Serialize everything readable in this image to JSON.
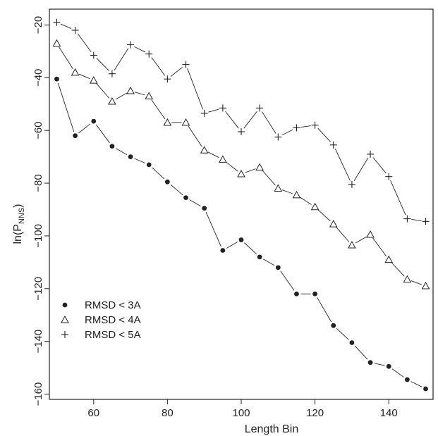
{
  "chart_data": {
    "type": "line",
    "xlabel": "Length Bin",
    "ylabel_main": "ln(P",
    "ylabel_sub": "NNS",
    "ylabel_close": ")",
    "xlim": [
      48,
      152
    ],
    "ylim": [
      -162,
      -14
    ],
    "xticks": [
      60,
      80,
      100,
      120,
      140
    ],
    "yticks": [
      -20,
      -40,
      -60,
      -80,
      -100,
      -120,
      -140,
      -160
    ],
    "yticks_labels": [
      "−20",
      "−40",
      "−60",
      "−80",
      "−100",
      "−120",
      "−140",
      "−160"
    ],
    "x": [
      50,
      55,
      60,
      65,
      70,
      75,
      80,
      85,
      90,
      95,
      100,
      105,
      110,
      115,
      120,
      125,
      130,
      135,
      140,
      145,
      150
    ],
    "series": [
      {
        "name": "RMSD < 3A",
        "marker": "filled-circle",
        "values": [
          -40.5,
          -62,
          -56.5,
          -66,
          -70,
          -73,
          -79.5,
          -85.5,
          -89.5,
          -105.5,
          -101.5,
          -108,
          -112,
          -122,
          -122,
          -134,
          -140.5,
          -148,
          -149.5,
          -154.5,
          -158
        ]
      },
      {
        "name": "RMSD < 4A",
        "marker": "open-triangle",
        "values": [
          -27,
          -38,
          -41,
          -49,
          -45,
          -47,
          -57,
          -57,
          -67.5,
          -71,
          -76.5,
          -74,
          -82,
          -84.5,
          -89,
          -95.5,
          -103.5,
          -99.5,
          -109,
          -116.5,
          -119
        ]
      },
      {
        "name": "RMSD < 5A",
        "marker": "plus",
        "values": [
          -19,
          -22,
          -31.5,
          -38.5,
          -27.5,
          -31,
          -40.5,
          -35,
          -53.5,
          -51.5,
          -60.5,
          -51.5,
          -62.5,
          -59,
          -58,
          -65.5,
          -80.5,
          -69,
          -77.5,
          -93.5,
          -94.5
        ]
      }
    ],
    "legend_position": "bottom-left",
    "grid": false,
    "color": "#222222"
  }
}
